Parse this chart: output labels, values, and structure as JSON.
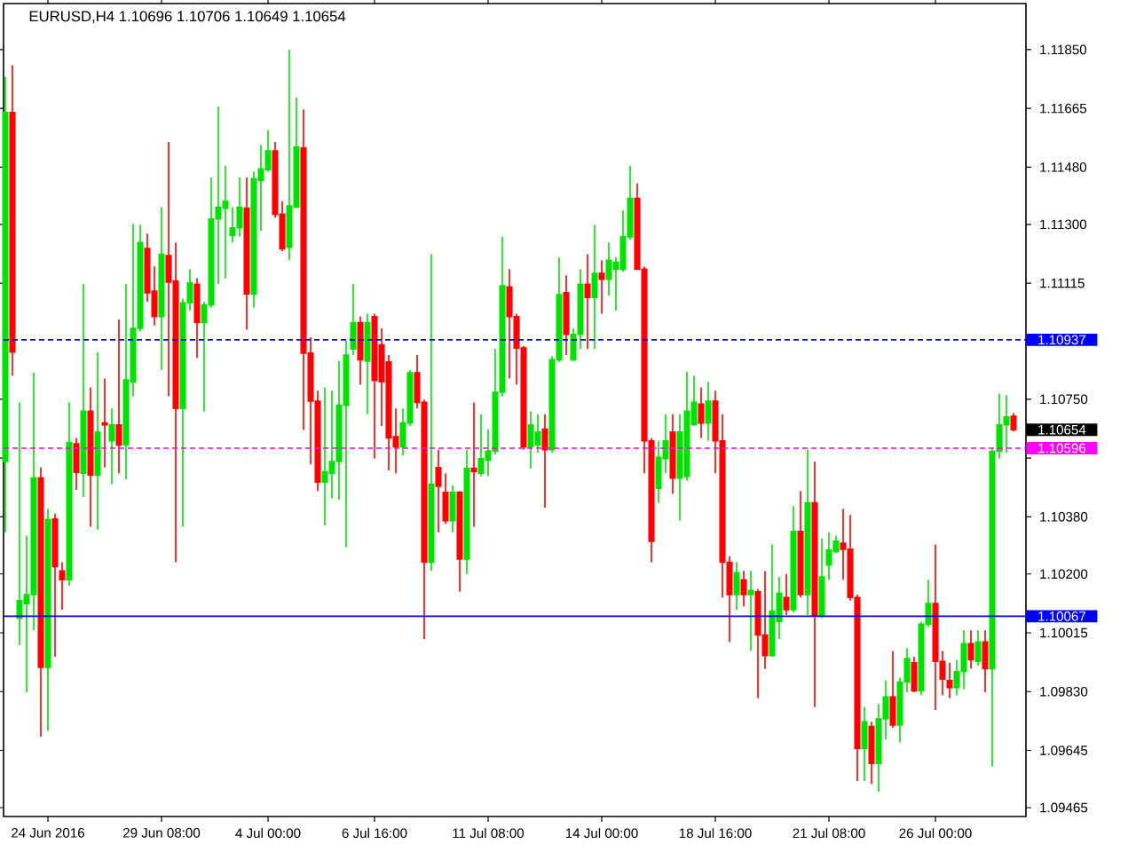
{
  "chart_data": {
    "type": "candlestick",
    "title": "EURUSD,H4 1.10696 1.10706 1.10649 1.10654",
    "categories": [
      null,
      null,
      null,
      null,
      null,
      null,
      "24 Jun 2016",
      null,
      null,
      null,
      null,
      null,
      null,
      null,
      null,
      null,
      null,
      null,
      null,
      null,
      null,
      null,
      "29 Jun 08:00",
      null,
      null,
      null,
      null,
      null,
      null,
      null,
      null,
      null,
      null,
      null,
      null,
      null,
      null,
      "4 Jul 00:00",
      null,
      null,
      null,
      null,
      null,
      null,
      null,
      null,
      null,
      null,
      null,
      null,
      null,
      null,
      "6 Jul 16:00",
      null,
      null,
      null,
      null,
      null,
      null,
      null,
      null,
      null,
      null,
      null,
      null,
      null,
      null,
      null,
      "11 Jul 08:00",
      null,
      null,
      null,
      null,
      null,
      null,
      null,
      null,
      null,
      null,
      null,
      null,
      null,
      null,
      null,
      "14 Jul 00:00",
      null,
      null,
      null,
      null,
      null,
      null,
      null,
      null,
      null,
      null,
      null,
      null,
      null,
      null,
      null,
      "18 Jul 16:00",
      null,
      null,
      null,
      null,
      null,
      null,
      null,
      null,
      null,
      null,
      null,
      null,
      null,
      null,
      null,
      "21 Jul 08:00",
      null,
      null,
      null,
      null,
      null,
      null,
      null,
      null,
      null,
      null,
      null,
      null,
      null,
      null,
      "26 Jul 00:00",
      null,
      null,
      null,
      null,
      null,
      null,
      null,
      null,
      null,
      null,
      null
    ],
    "ohlc": [
      [
        1.10554,
        1.11764,
        1.10331,
        1.11652
      ],
      [
        1.11652,
        1.11801,
        1.10824,
        1.10898
      ],
      [
        1.10061,
        1.1074,
        1.09977,
        1.10116
      ],
      [
        1.10107,
        1.10321,
        1.09828,
        1.10135
      ],
      [
        1.10135,
        1.10833,
        1.10023,
        1.10502
      ],
      [
        1.10502,
        1.10535,
        1.09688,
        1.09906
      ],
      [
        1.09906,
        1.10405,
        1.09707,
        1.10371
      ],
      [
        1.10373,
        1.1039,
        1.0994,
        1.10223
      ],
      [
        1.1021,
        1.10237,
        1.10088,
        1.10182
      ],
      [
        1.10182,
        1.1074,
        1.10163,
        1.10613
      ],
      [
        1.1061,
        1.10628,
        1.10465,
        1.1052
      ],
      [
        1.10517,
        1.11112,
        1.10442,
        1.10712
      ],
      [
        1.10712,
        1.10787,
        1.10349,
        1.10511
      ],
      [
        1.10511,
        1.10898,
        1.1034,
        1.10647
      ],
      [
        1.10675,
        1.10815,
        1.10535,
        1.10669
      ],
      [
        1.10619,
        1.10721,
        1.10483,
        1.10669
      ],
      [
        1.10669,
        1.11001,
        1.10517,
        1.10606
      ],
      [
        1.10606,
        1.11112,
        1.10498,
        1.10811
      ],
      [
        1.10805,
        1.11302,
        1.10759,
        1.10973
      ],
      [
        1.10973,
        1.11299,
        1.10963,
        1.11243
      ],
      [
        1.11224,
        1.11271,
        1.11057,
        1.11085
      ],
      [
        1.1109,
        1.11168,
        1.10982,
        1.1101
      ],
      [
        1.1101,
        1.11354,
        1.10842,
        1.11206
      ],
      [
        1.11202,
        1.11559,
        1.10759,
        1.11118
      ],
      [
        1.11122,
        1.11243,
        1.10237,
        1.10721
      ],
      [
        1.10721,
        1.11066,
        1.10349,
        1.11053
      ],
      [
        1.11053,
        1.11159,
        1.11029,
        1.11116
      ],
      [
        1.11112,
        1.11131,
        1.1088,
        1.10991
      ],
      [
        1.10991,
        1.11057,
        1.10712,
        1.11047
      ],
      [
        1.11047,
        1.11448,
        1.11038,
        1.11317
      ],
      [
        1.11317,
        1.11671,
        1.11112,
        1.11354
      ],
      [
        1.11351,
        1.11485,
        1.11131,
        1.11373
      ],
      [
        1.11265,
        1.11354,
        1.11243,
        1.11289
      ],
      [
        1.11289,
        1.11448,
        1.11261,
        1.11354
      ],
      [
        1.11351,
        1.11448,
        1.10969,
        1.11081
      ],
      [
        1.11081,
        1.11466,
        1.11038,
        1.11444
      ],
      [
        1.11438,
        1.1155,
        1.1128,
        1.11475
      ],
      [
        1.11472,
        1.11596,
        1.11466,
        1.11531
      ],
      [
        1.11531,
        1.11559,
        1.11321,
        1.11332
      ],
      [
        1.11332,
        1.11373,
        1.11215,
        1.11224
      ],
      [
        1.11228,
        1.1185,
        1.11187,
        1.11358
      ],
      [
        1.11354,
        1.11699,
        1.11351,
        1.11544
      ],
      [
        1.11541,
        1.11662,
        1.10653,
        1.10895
      ],
      [
        1.10895,
        1.10945,
        1.10545,
        1.10744
      ],
      [
        1.10744,
        1.10777,
        1.10461,
        1.10489
      ],
      [
        1.10489,
        1.10787,
        1.10353,
        1.10522
      ],
      [
        1.10517,
        1.10777,
        1.10438,
        1.10554
      ],
      [
        1.10554,
        1.1087,
        1.10433,
        1.10731
      ],
      [
        1.10731,
        1.10935,
        1.10284,
        1.10889
      ],
      [
        1.10908,
        1.11112,
        1.10889,
        1.10991
      ],
      [
        1.10991,
        1.1101,
        1.10796,
        1.10874
      ],
      [
        1.1087,
        1.11019,
        1.10703,
        1.10991
      ],
      [
        1.1101,
        1.11019,
        1.10563,
        1.10809
      ],
      [
        1.10921,
        1.10973,
        1.10666,
        1.10805
      ],
      [
        1.10867,
        1.10889,
        1.10526,
        1.10628
      ],
      [
        1.10632,
        1.10721,
        1.10517,
        1.106
      ],
      [
        1.106,
        1.10721,
        1.10573,
        1.10675
      ],
      [
        1.10675,
        1.10842,
        1.10666,
        1.10833
      ],
      [
        1.10833,
        1.10889,
        1.10721,
        1.1074
      ],
      [
        1.1074,
        1.10749,
        1.09995,
        1.10237
      ],
      [
        1.10237,
        1.11206,
        1.1021,
        1.10483
      ],
      [
        1.10535,
        1.10591,
        1.10331,
        1.10476
      ],
      [
        1.10457,
        1.10517,
        1.10358,
        1.10368
      ],
      [
        1.10368,
        1.10479,
        1.10331,
        1.10457
      ],
      [
        1.10457,
        1.10461,
        1.10144,
        1.10247
      ],
      [
        1.10247,
        1.10591,
        1.102,
        1.10532
      ],
      [
        1.10532,
        1.1074,
        1.10349,
        1.10522
      ],
      [
        1.10517,
        1.10703,
        1.10507,
        1.10563
      ],
      [
        1.10558,
        1.10656,
        1.10507,
        1.10587
      ],
      [
        1.10587,
        1.10908,
        1.10576,
        1.10772
      ],
      [
        1.10772,
        1.11261,
        1.10759,
        1.11107
      ],
      [
        1.11103,
        1.11159,
        1.10815,
        1.1101
      ],
      [
        1.1101,
        1.11019,
        1.10796,
        1.10911
      ],
      [
        1.10911,
        1.10917,
        1.10591,
        1.106
      ],
      [
        1.106,
        1.10712,
        1.10532,
        1.10669
      ],
      [
        1.10606,
        1.10703,
        1.10582,
        1.10647
      ],
      [
        1.10656,
        1.10703,
        1.10409,
        1.10591
      ],
      [
        1.10591,
        1.10885,
        1.10582,
        1.10874
      ],
      [
        1.10874,
        1.11196,
        1.10867,
        1.11079
      ],
      [
        1.11085,
        1.1114,
        1.10889,
        1.10954
      ],
      [
        1.10874,
        1.10973,
        1.1087,
        1.10954
      ],
      [
        1.10954,
        1.11159,
        1.10908,
        1.11112
      ],
      [
        1.11112,
        1.11206,
        1.10908,
        1.1107
      ],
      [
        1.1107,
        1.11299,
        1.10908,
        1.11146
      ],
      [
        1.11146,
        1.11187,
        1.11019,
        1.11127
      ],
      [
        1.11127,
        1.11243,
        1.11075,
        1.11187
      ],
      [
        1.11159,
        1.11196,
        1.11029,
        1.11181
      ],
      [
        1.11159,
        1.11345,
        1.1115,
        1.11261
      ],
      [
        1.11261,
        1.11485,
        1.11252,
        1.11382
      ],
      [
        1.11382,
        1.11429,
        1.11159,
        1.11159
      ],
      [
        1.11159,
        1.11168,
        1.10517,
        1.10619
      ],
      [
        1.10619,
        1.10628,
        1.10237,
        1.10303
      ],
      [
        1.1047,
        1.10619,
        1.10424,
        1.10567
      ],
      [
        1.10563,
        1.10703,
        1.10517,
        1.10619
      ],
      [
        1.10647,
        1.10703,
        1.10452,
        1.10502
      ],
      [
        1.10502,
        1.10703,
        1.10368,
        1.10647
      ],
      [
        1.10507,
        1.10837,
        1.10494,
        1.10712
      ],
      [
        1.10671,
        1.10824,
        1.10666,
        1.1074
      ],
      [
        1.10735,
        1.10787,
        1.10628,
        1.10675
      ],
      [
        1.10675,
        1.10805,
        1.10619,
        1.10744
      ],
      [
        1.10744,
        1.10777,
        1.10517,
        1.10619
      ],
      [
        1.10619,
        1.10703,
        1.10126,
        1.10237
      ],
      [
        1.10237,
        1.10256,
        1.09986,
        1.10135
      ],
      [
        1.10135,
        1.10237,
        1.10088,
        1.10204
      ],
      [
        1.10182,
        1.1021,
        1.10098,
        1.10135
      ],
      [
        1.10135,
        1.1021,
        1.09958,
        1.10148
      ],
      [
        1.10144,
        1.10153,
        1.09809,
        1.10008
      ],
      [
        1.10008,
        1.1021,
        1.09902,
        1.09943
      ],
      [
        1.09943,
        1.10293,
        1.0994,
        1.10083
      ],
      [
        1.10051,
        1.10191,
        1.09995,
        1.10139
      ],
      [
        1.10126,
        1.102,
        1.1007,
        1.10088
      ],
      [
        1.10088,
        1.10414,
        1.10079,
        1.10334
      ],
      [
        1.10334,
        1.10461,
        1.10126,
        1.10135
      ],
      [
        1.10135,
        1.10591,
        1.1007,
        1.10424
      ],
      [
        1.10424,
        1.10554,
        1.09781,
        1.1007
      ],
      [
        1.1007,
        1.10312,
        1.10061,
        1.10191
      ],
      [
        1.10228,
        1.10331,
        1.10182,
        1.10275
      ],
      [
        1.10271,
        1.10321,
        1.10265,
        1.10303
      ],
      [
        1.10297,
        1.10405,
        1.10182,
        1.10278
      ],
      [
        1.10278,
        1.10386,
        1.10116,
        1.10126
      ],
      [
        1.10126,
        1.10135,
        1.09549,
        1.09651
      ],
      [
        1.09651,
        1.09781,
        1.09549,
        1.09735
      ],
      [
        1.0972,
        1.09735,
        1.09539,
        1.09604
      ],
      [
        1.09604,
        1.09791,
        1.09515,
        1.09744
      ],
      [
        1.09744,
        1.09865,
        1.09679,
        1.09813
      ],
      [
        1.09813,
        1.09958,
        1.09716,
        1.09725
      ],
      [
        1.09725,
        1.09874,
        1.0967,
        1.0986
      ],
      [
        1.0986,
        1.09967,
        1.09828,
        1.09934
      ],
      [
        1.09921,
        1.0994,
        1.09828,
        1.09832
      ],
      [
        1.09832,
        1.10051,
        1.09819,
        1.10042
      ],
      [
        1.10042,
        1.10182,
        1.10033,
        1.10107
      ],
      [
        1.10107,
        1.10293,
        1.09772,
        1.09925
      ],
      [
        1.09925,
        1.09958,
        1.09819,
        1.09869
      ],
      [
        1.09865,
        1.09921,
        1.09809,
        1.09843
      ],
      [
        1.09843,
        1.0993,
        1.09819,
        1.09893
      ],
      [
        1.09893,
        1.10023,
        1.09837,
        1.09981
      ],
      [
        1.09981,
        1.10023,
        1.09902,
        1.0993
      ],
      [
        1.09925,
        1.10023,
        1.09912,
        1.09986
      ],
      [
        1.09986,
        1.10023,
        1.09828,
        1.09902
      ],
      [
        1.09902,
        1.10595,
        1.09595,
        1.10586
      ],
      [
        1.10586,
        1.10768,
        1.10563,
        1.10669
      ],
      [
        1.10669,
        1.10762,
        1.10582,
        1.10694
      ],
      [
        1.10696,
        1.10706,
        1.10649,
        1.10654
      ]
    ],
    "ylim": [
      1.09437,
      1.11995
    ],
    "yticks": [
      {
        "value": 1.1185,
        "label": "1.11850"
      },
      1.11665,
      {
        "value": 1.1148,
        "label": "1.11480"
      },
      {
        "value": 1.113,
        "label": "1.11300"
      },
      1.11115,
      {
        "value": 1.1075,
        "label": "1.10750"
      },
      {
        "value": 1.10565,
        "label": null
      },
      {
        "value": 1.1038,
        "label": "1.10380"
      },
      {
        "value": 1.102,
        "label": "1.10200"
      },
      1.10015,
      {
        "value": 1.0983,
        "label": "1.09830"
      },
      1.09645,
      1.09465
    ],
    "ref_lines": [
      {
        "axis": "y",
        "value": 1.10937,
        "label": "1.10937",
        "color": "#0000ff",
        "line_style": "dashed"
      },
      {
        "axis": "y",
        "value": 1.10596,
        "label": "1.10596",
        "color": "#ff00ff",
        "line_style": "dashed"
      },
      {
        "axis": "y",
        "value": 1.10067,
        "label": "1.10067",
        "color": "#0000ff",
        "line_style": "solid"
      }
    ],
    "annotations": [
      "1.10654"
    ]
  }
}
